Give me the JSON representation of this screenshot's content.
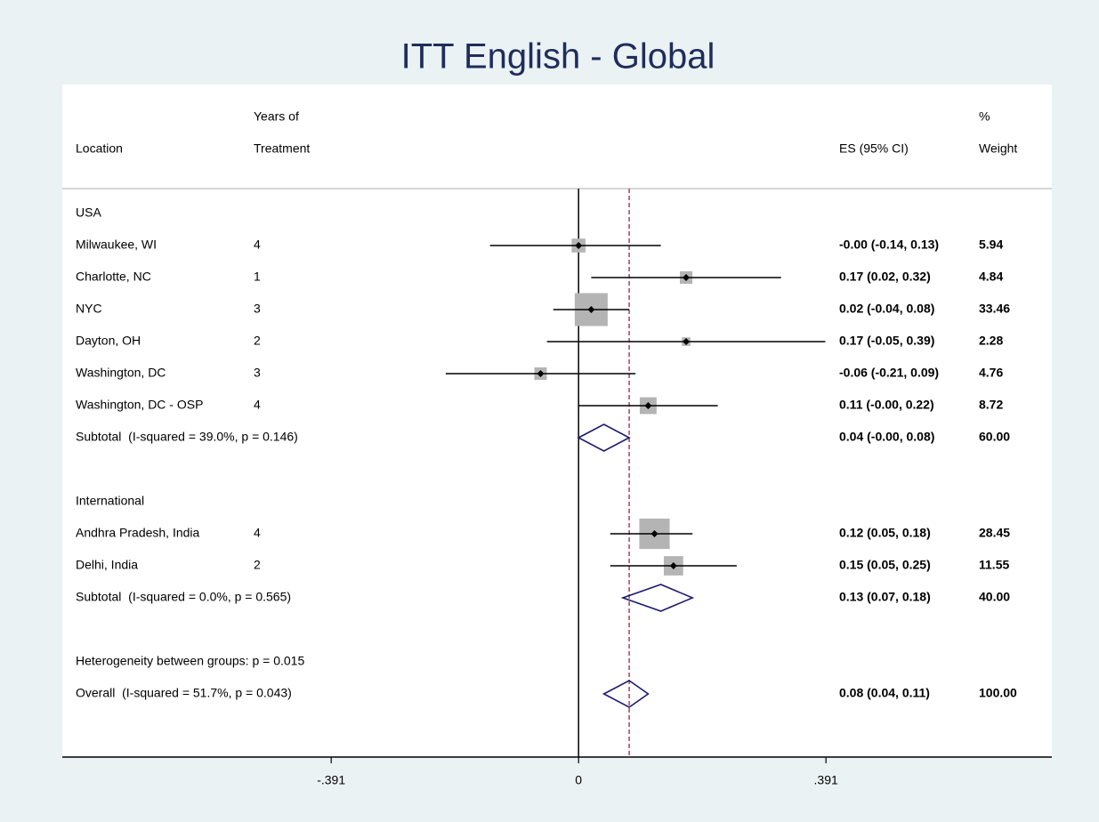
{
  "chart_data": {
    "type": "forest",
    "title": "ITT English - Global",
    "headers": {
      "location": "Location",
      "years": [
        "Years of",
        "Treatment"
      ],
      "es": "ES (95% CI)",
      "weight": [
        "%",
        "Weight"
      ]
    },
    "xlim": [
      -0.816,
      0.748
    ],
    "xticks": [
      {
        "value": -0.391,
        "label": "-.391"
      },
      0,
      {
        "value": 0.391,
        "label": ".391"
      }
    ],
    "box_color": "#b4b4b4",
    "diamond_color": "#1a1a6e",
    "ref_color": "#a02040",
    "groups": [
      {
        "name": "USA",
        "rows": [
          {
            "location": "Milwaukee, WI",
            "years": 4,
            "es": 0,
            "lo": -0.14,
            "hi": 0.13,
            "es_label": "-0.00 (-0.14, 0.13)",
            "weight": 5.94
          },
          {
            "location": "Charlotte, NC",
            "years": 1,
            "es": 0.17,
            "lo": 0.02,
            "hi": 0.32,
            "es_label": "0.17 (0.02, 0.32)",
            "weight": 4.84
          },
          {
            "location": "NYC",
            "years": 3,
            "es": 0.02,
            "lo": -0.04,
            "hi": 0.08,
            "es_label": "0.02 (-0.04, 0.08)",
            "weight": 33.46
          },
          {
            "location": "Dayton, OH",
            "years": 2,
            "es": 0.17,
            "lo": -0.05,
            "hi": 0.39,
            "es_label": "0.17 (-0.05, 0.39)",
            "weight": 2.28
          },
          {
            "location": "Washington, DC",
            "years": 3,
            "es": -0.06,
            "lo": -0.21,
            "hi": 0.09,
            "es_label": "-0.06 (-0.21, 0.09)",
            "weight": 4.76
          },
          {
            "location": "Washington, DC - OSP",
            "years": 4,
            "es": 0.11,
            "lo": 0,
            "hi": 0.22,
            "es_label": "0.11 (-0.00, 0.22)",
            "weight": 8.72
          }
        ],
        "subtotal": {
          "label": "Subtotal  (I-squared = 39.0%, p = 0.146)",
          "es": 0.04,
          "lo": 0,
          "hi": 0.08,
          "es_label": "0.04 (-0.00, 0.08)",
          "weight": 60,
          "weight_label": "60.00"
        }
      },
      {
        "name": "International",
        "rows": [
          {
            "location": "Andhra Pradesh, India",
            "years": 4,
            "es": 0.12,
            "lo": 0.05,
            "hi": 0.18,
            "es_label": "0.12 (0.05, 0.18)",
            "weight": 28.45
          },
          {
            "location": "Delhi, India",
            "years": 2,
            "es": 0.15,
            "lo": 0.05,
            "hi": 0.25,
            "es_label": "0.15 (0.05, 0.25)",
            "weight": 11.55
          }
        ],
        "subtotal": {
          "label": "Subtotal  (I-squared = 0.0%, p = 0.565)",
          "es": 0.13,
          "lo": 0.07,
          "hi": 0.18,
          "es_label": "0.13 (0.07, 0.18)",
          "weight": 40,
          "weight_label": "40.00"
        }
      }
    ],
    "heterogeneity": "Heterogeneity between groups: p = 0.015",
    "overall": {
      "label": "Overall  (I-squared = 51.7%, p = 0.043)",
      "es": 0.08,
      "lo": 0.04,
      "hi": 0.11,
      "es_label": "0.08 (0.04, 0.11)",
      "weight": 100,
      "weight_label": "100.00"
    }
  }
}
